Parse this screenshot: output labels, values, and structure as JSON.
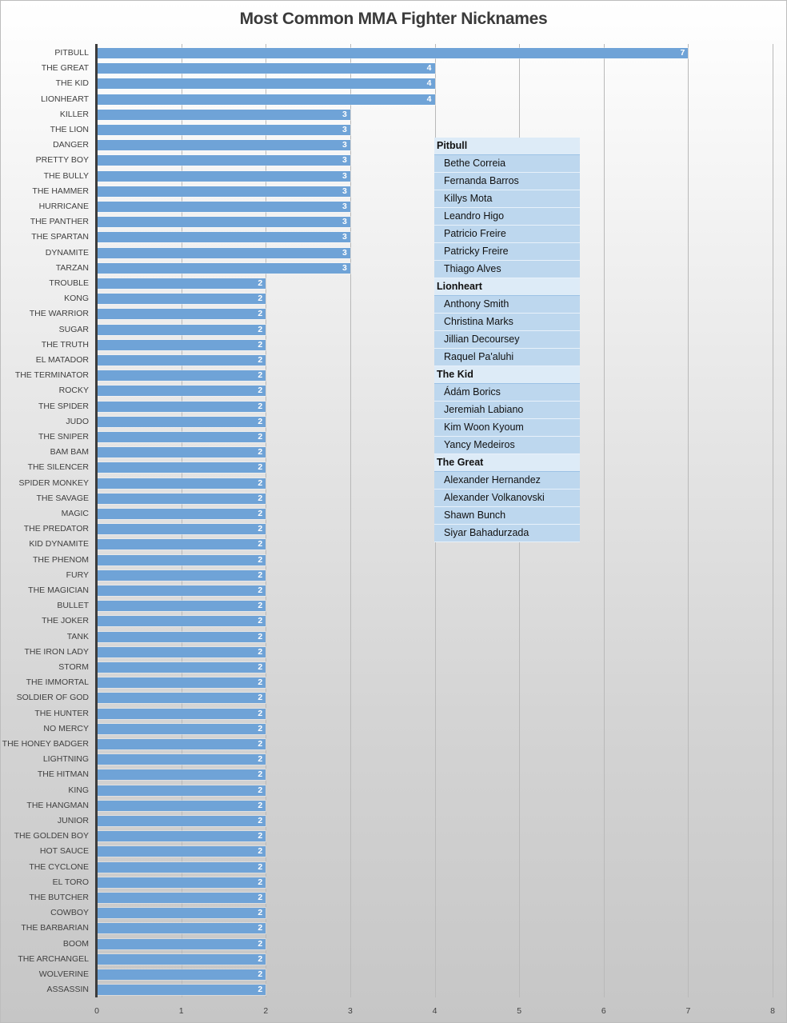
{
  "chart_data": {
    "type": "bar",
    "orientation": "horizontal",
    "title": "Most Common MMA Fighter Nicknames",
    "xlabel": "",
    "ylabel": "",
    "xlim": [
      0,
      8
    ],
    "x_ticks": [
      "0",
      "1",
      "2",
      "3",
      "4",
      "5",
      "6",
      "7",
      "8"
    ],
    "grid": true,
    "legend": "none",
    "data_labels": true,
    "bar_color": "#6fa3d7",
    "categories": [
      "PITBULL",
      "THE GREAT",
      "THE KID",
      "LIONHEART",
      "KILLER",
      "THE LION",
      "DANGER",
      "PRETTY BOY",
      "THE BULLY",
      "THE HAMMER",
      "HURRICANE",
      "THE PANTHER",
      "THE SPARTAN",
      "DYNAMITE",
      "TARZAN",
      "TROUBLE",
      "KONG",
      "THE WARRIOR",
      "SUGAR",
      "THE TRUTH",
      "EL MATADOR",
      "THE TERMINATOR",
      "ROCKY",
      "THE SPIDER",
      "JUDO",
      "THE SNIPER",
      "BAM BAM",
      "THE SILENCER",
      "SPIDER MONKEY",
      "THE SAVAGE",
      "MAGIC",
      "THE PREDATOR",
      "KID DYNAMITE",
      "THE PHENOM",
      "FURY",
      "THE MAGICIAN",
      "BULLET",
      "THE JOKER",
      "TANK",
      "THE IRON LADY",
      "STORM",
      "THE IMMORTAL",
      "SOLDIER OF GOD",
      "THE HUNTER",
      "NO MERCY",
      "THE HONEY BADGER",
      "LIGHTNING",
      "THE HITMAN",
      "KING",
      "THE HANGMAN",
      "JUNIOR",
      "THE GOLDEN BOY",
      "HOT SAUCE",
      "THE CYCLONE",
      "EL TORO",
      "THE BUTCHER",
      "COWBOY",
      "THE BARBARIAN",
      "BOOM",
      "THE ARCHANGEL",
      "WOLVERINE",
      "ASSASSIN"
    ],
    "values": [
      7,
      4,
      4,
      4,
      3,
      3,
      3,
      3,
      3,
      3,
      3,
      3,
      3,
      3,
      3,
      2,
      2,
      2,
      2,
      2,
      2,
      2,
      2,
      2,
      2,
      2,
      2,
      2,
      2,
      2,
      2,
      2,
      2,
      2,
      2,
      2,
      2,
      2,
      2,
      2,
      2,
      2,
      2,
      2,
      2,
      2,
      2,
      2,
      2,
      2,
      2,
      2,
      2,
      2,
      2,
      2,
      2,
      2,
      2,
      2,
      2,
      2
    ],
    "annotation_table": [
      {
        "group": "Pitbull",
        "names": [
          "Bethe Correia",
          "Fernanda Barros",
          "Killys Mota",
          "Leandro Higo",
          "Patricio Freire",
          "Patricky Freire",
          "Thiago Alves"
        ]
      },
      {
        "group": "Lionheart",
        "names": [
          "Anthony Smith",
          "Christina Marks",
          "Jillian Decoursey",
          "Raquel Pa'aluhi"
        ]
      },
      {
        "group": "The Kid",
        "names": [
          "Ádám Borics",
          "Jeremiah Labiano",
          "Kim Woon Kyoum",
          "Yancy Medeiros"
        ]
      },
      {
        "group": "The Great",
        "names": [
          "Alexander Hernandez",
          "Alexander Volkanovski",
          "Shawn Bunch",
          "Siyar Bahadurzada"
        ]
      }
    ]
  }
}
